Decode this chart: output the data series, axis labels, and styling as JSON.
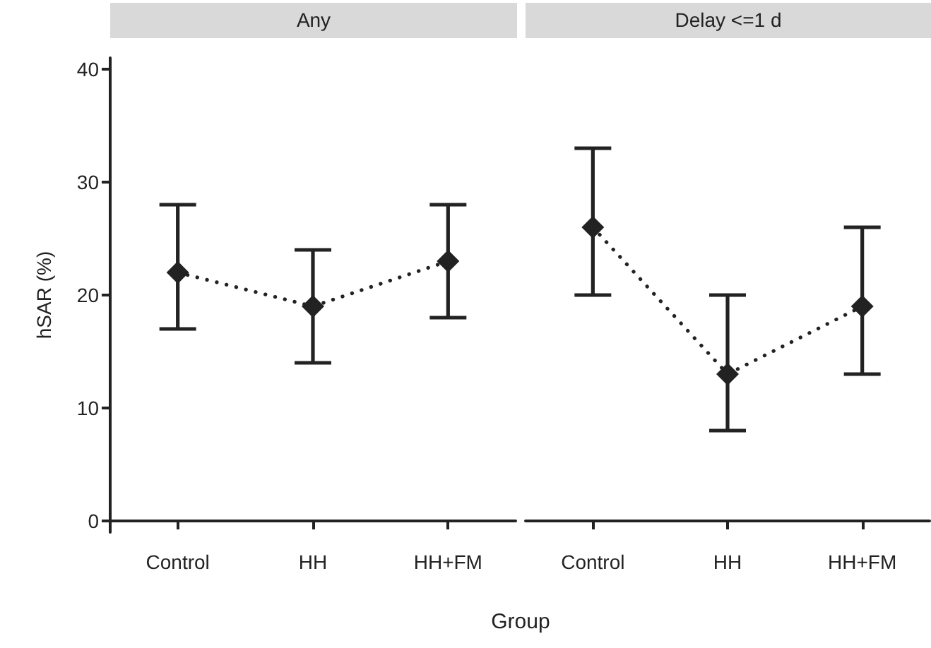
{
  "chart_data": [
    {
      "type": "line",
      "title": "Any",
      "xlabel": "Group",
      "ylabel": "hSAR (%)",
      "categories": [
        "Control",
        "HH",
        "HH+FM"
      ],
      "ylim": [
        -1,
        41
      ],
      "yticks": [
        0,
        10,
        20,
        30,
        40
      ],
      "marker": "diamond",
      "line_style": "dotted",
      "series": [
        {
          "color": "#222222",
          "values": [
            22,
            19,
            23
          ],
          "errors": [
            [
              17,
              28
            ],
            [
              14,
              24
            ],
            [
              18,
              28
            ]
          ]
        }
      ]
    },
    {
      "type": "line",
      "title": "Delay <=1 d",
      "categories": [
        "Control",
        "HH",
        "HH+FM"
      ],
      "ylim": [
        0,
        40
      ],
      "yticks": [
        0,
        10,
        20,
        30,
        40
      ],
      "tick_labels": "x",
      "marker": "diamond",
      "line_style": "dotted",
      "series": [
        {
          "color": "#222222",
          "values": [
            26,
            13,
            19
          ],
          "errors": [
            [
              20,
              33
            ],
            [
              8,
              20
            ],
            [
              13,
              26
            ]
          ]
        }
      ]
    }
  ]
}
